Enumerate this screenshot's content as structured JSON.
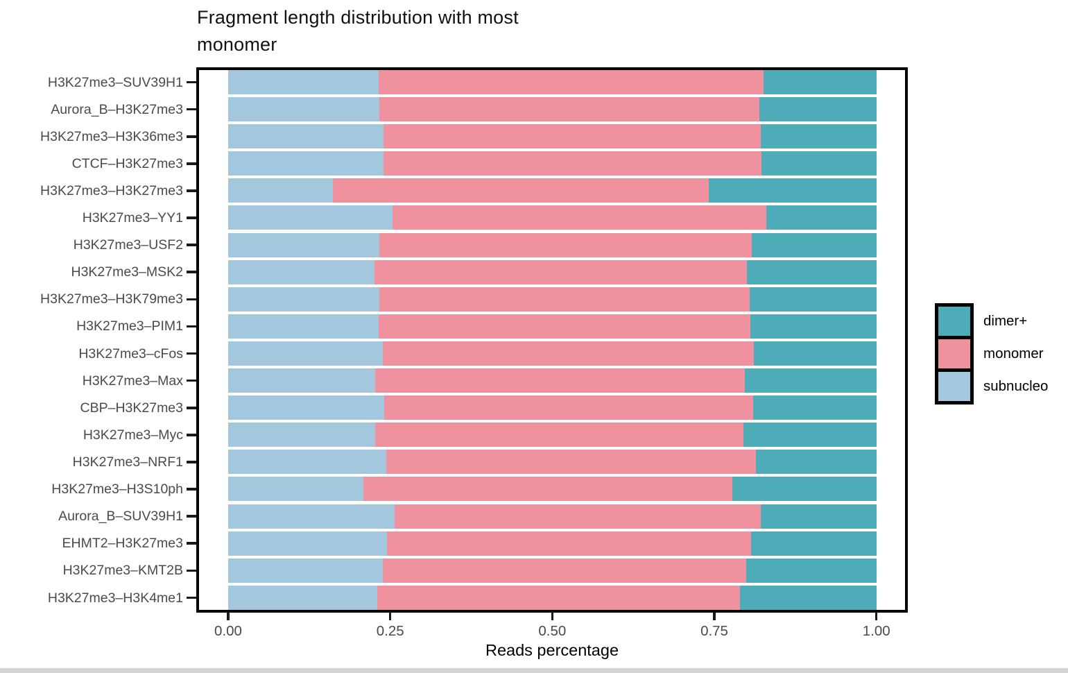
{
  "title": "Fragment length distribution with most monomer",
  "chart_data": {
    "type": "bar",
    "orientation": "horizontal",
    "stacked": true,
    "title": "Fragment length distribution with most monomer",
    "xlabel": "Reads percentage",
    "ylabel": "",
    "xlim": [
      0,
      1
    ],
    "x_ticks": [
      "0.00",
      "0.25",
      "0.50",
      "0.75",
      "1.00"
    ],
    "x_tick_values": [
      0,
      0.25,
      0.5,
      0.75,
      1.0
    ],
    "grid": false,
    "legend_position": "right",
    "legend_order": [
      "dimer+",
      "monomer",
      "subnucleo"
    ],
    "colors": {
      "dimer+": "#4EACB8",
      "monomer": "#EF919E",
      "subnucleo": "#A3C7DC"
    },
    "categories": [
      "H3K27me3–SUV39H1",
      "Aurora_B–H3K27me3",
      "H3K27me3–H3K36me3",
      "CTCF–H3K27me3",
      "H3K27me3–H3K27me3",
      "H3K27me3–YY1",
      "H3K27me3–USF2",
      "H3K27me3–MSK2",
      "H3K27me3–H3K79me3",
      "H3K27me3–PIM1",
      "H3K27me3–cFos",
      "H3K27me3–Max",
      "CBP–H3K27me3",
      "H3K27me3–Myc",
      "H3K27me3–NRF1",
      "H3K27me3–H3S10ph",
      "Aurora_B–SUV39H1",
      "EHMT2–H3K27me3",
      "H3K27me3–KMT2B",
      "H3K27me3–H3K4me1"
    ],
    "series": [
      {
        "name": "subnucleo",
        "color": "#A3C7DC",
        "values": [
          0.232,
          0.233,
          0.24,
          0.24,
          0.162,
          0.254,
          0.233,
          0.226,
          0.233,
          0.232,
          0.239,
          0.227,
          0.241,
          0.227,
          0.244,
          0.209,
          0.257,
          0.245,
          0.239,
          0.23
        ]
      },
      {
        "name": "monomer",
        "color": "#EF919E",
        "values": [
          0.594,
          0.586,
          0.581,
          0.582,
          0.579,
          0.576,
          0.575,
          0.574,
          0.571,
          0.573,
          0.572,
          0.57,
          0.569,
          0.568,
          0.57,
          0.569,
          0.564,
          0.561,
          0.56,
          0.559
        ]
      },
      {
        "name": "dimer+",
        "color": "#4EACB8",
        "values": [
          0.174,
          0.181,
          0.179,
          0.178,
          0.259,
          0.17,
          0.192,
          0.2,
          0.196,
          0.195,
          0.189,
          0.203,
          0.19,
          0.205,
          0.186,
          0.222,
          0.179,
          0.194,
          0.201,
          0.211
        ]
      }
    ]
  }
}
